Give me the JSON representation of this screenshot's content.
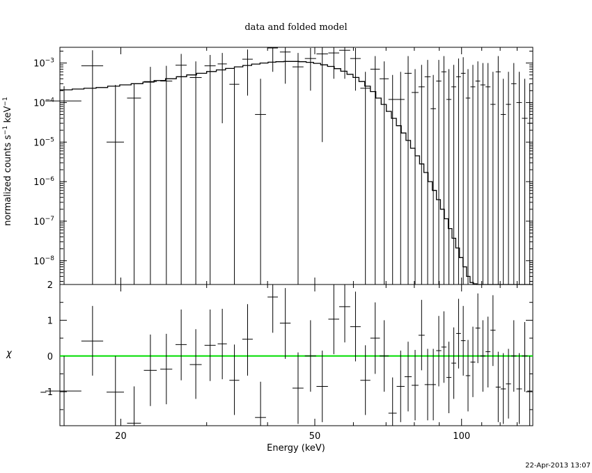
{
  "chart_data": {
    "type": "line",
    "title": "data and folded model",
    "xlabel": "Energy (keV)",
    "x_scale": "log",
    "xlim": [
      15,
      140
    ],
    "x_ticks": [
      20,
      50,
      100
    ],
    "timestamp": "22-Apr-2013 13:07",
    "upper_panel": {
      "ylabel": "normalized counts s^-1 keV^-1",
      "y_scale": "log",
      "ylim": [
        2.5e-09,
        0.0025
      ],
      "y_ticks": [
        1e-08,
        1e-07,
        1e-06,
        1e-05,
        0.0001,
        0.001
      ],
      "y_tick_labels": [
        {
          "base": "10",
          "exp": "−8"
        },
        {
          "base": "10",
          "exp": "−7"
        },
        {
          "base": "10",
          "exp": "−6"
        },
        {
          "base": "10",
          "exp": "−5"
        },
        {
          "base": "10",
          "exp": "−4"
        },
        {
          "base": "10",
          "exp": "−3"
        }
      ],
      "data_points": [
        {
          "x": 15.3,
          "xerr": 1.3,
          "y": 0.00011,
          "ylo": 2.5e-09,
          "yhi": 0.00026
        },
        {
          "x": 17.5,
          "xerr": 0.9,
          "y": 0.00085,
          "ylo": 2.5e-09,
          "yhi": 0.0021
        },
        {
          "x": 19.5,
          "xerr": 0.8,
          "y": 1e-05,
          "ylo": 2.5e-09,
          "yhi": 0.00028
        },
        {
          "x": 21.3,
          "xerr": 0.7,
          "y": 0.00013,
          "ylo": 2.5e-09,
          "yhi": 0.0003
        },
        {
          "x": 23.0,
          "xerr": 0.7,
          "y": 0.00034,
          "ylo": 2.5e-09,
          "yhi": 0.0008
        },
        {
          "x": 24.8,
          "xerr": 0.7,
          "y": 0.00035,
          "ylo": 2.5e-09,
          "yhi": 0.00085
        },
        {
          "x": 26.6,
          "xerr": 0.7,
          "y": 0.00088,
          "ylo": 2.5e-09,
          "yhi": 0.0017
        },
        {
          "x": 28.5,
          "xerr": 0.8,
          "y": 0.00043,
          "ylo": 2.5e-09,
          "yhi": 0.0011
        },
        {
          "x": 30.5,
          "xerr": 0.8,
          "y": 0.00085,
          "ylo": 2.5e-09,
          "yhi": 0.0016
        },
        {
          "x": 32.3,
          "xerr": 0.7,
          "y": 0.00095,
          "ylo": 3e-05,
          "yhi": 0.0018
        },
        {
          "x": 34.2,
          "xerr": 0.8,
          "y": 0.00029,
          "ylo": 2.5e-09,
          "yhi": 0.00075
        },
        {
          "x": 36.4,
          "xerr": 0.9,
          "y": 0.00125,
          "ylo": 0.00015,
          "yhi": 0.0022
        },
        {
          "x": 38.7,
          "xerr": 1.0,
          "y": 5e-05,
          "ylo": 2.5e-09,
          "yhi": 0.0004
        },
        {
          "x": 41.0,
          "xerr": 1.0,
          "y": 0.0024,
          "ylo": 0.0006,
          "yhi": 0.0025
        },
        {
          "x": 43.5,
          "xerr": 1.1,
          "y": 0.0019,
          "ylo": 0.0003,
          "yhi": 0.0025
        },
        {
          "x": 46.2,
          "xerr": 1.2,
          "y": 0.0008,
          "ylo": 2.5e-09,
          "yhi": 0.0018
        },
        {
          "x": 49.0,
          "xerr": 1.3,
          "y": 0.0013,
          "ylo": 0.0002,
          "yhi": 0.0024
        },
        {
          "x": 51.8,
          "xerr": 1.4,
          "y": 0.0017,
          "ylo": 1e-05,
          "yhi": 0.0025
        },
        {
          "x": 54.7,
          "xerr": 1.4,
          "y": 0.0018,
          "ylo": 0.0004,
          "yhi": 0.0025
        },
        {
          "x": 57.6,
          "xerr": 1.5,
          "y": 0.0021,
          "ylo": 0.0004,
          "yhi": 0.0025
        },
        {
          "x": 60.6,
          "xerr": 1.5,
          "y": 0.0013,
          "ylo": 0.0002,
          "yhi": 0.0024
        },
        {
          "x": 63.5,
          "xerr": 1.5,
          "y": 0.00023,
          "ylo": 2.5e-09,
          "yhi": 0.0006
        },
        {
          "x": 66.5,
          "xerr": 1.5,
          "y": 0.0007,
          "ylo": 2.5e-09,
          "yhi": 0.0015
        },
        {
          "x": 69.4,
          "xerr": 1.5,
          "y": 0.0004,
          "ylo": 2.5e-09,
          "yhi": 0.0011
        },
        {
          "x": 72.2,
          "xerr": 1.4,
          "y": 0.00012,
          "ylo": 2.5e-09,
          "yhi": 0.0005
        },
        {
          "x": 75.0,
          "xerr": 1.4,
          "y": 0.00012,
          "ylo": 2.5e-09,
          "yhi": 0.0006
        },
        {
          "x": 77.7,
          "xerr": 1.3,
          "y": 0.00055,
          "ylo": 2.5e-09,
          "yhi": 0.0015
        },
        {
          "x": 80.3,
          "xerr": 1.3,
          "y": 0.00018,
          "ylo": 2.5e-09,
          "yhi": 0.0007
        },
        {
          "x": 82.8,
          "xerr": 1.2,
          "y": 0.00025,
          "ylo": 2.5e-09,
          "yhi": 0.0009
        },
        {
          "x": 85.2,
          "xerr": 1.2,
          "y": 0.00045,
          "ylo": 2.5e-09,
          "yhi": 0.0012
        },
        {
          "x": 87.5,
          "xerr": 1.1,
          "y": 7e-05,
          "ylo": 2.5e-09,
          "yhi": 0.0005
        },
        {
          "x": 89.8,
          "xerr": 1.1,
          "y": 0.00035,
          "ylo": 2.5e-09,
          "yhi": 0.0012
        },
        {
          "x": 92.0,
          "xerr": 1.1,
          "y": 0.0006,
          "ylo": 2.5e-09,
          "yhi": 0.0015
        },
        {
          "x": 94.2,
          "xerr": 1.1,
          "y": 0.00012,
          "ylo": 2.5e-09,
          "yhi": 0.0007
        },
        {
          "x": 96.4,
          "xerr": 1.1,
          "y": 0.00025,
          "ylo": 2.5e-09,
          "yhi": 0.0009
        },
        {
          "x": 98.6,
          "xerr": 1.1,
          "y": 0.00045,
          "ylo": 2.5e-09,
          "yhi": 0.0013
        },
        {
          "x": 100.8,
          "xerr": 1.1,
          "y": 0.00055,
          "ylo": 2.5e-09,
          "yhi": 0.0014
        },
        {
          "x": 103.1,
          "xerr": 1.1,
          "y": 0.00013,
          "ylo": 2.5e-09,
          "yhi": 0.0007
        },
        {
          "x": 105.5,
          "xerr": 1.2,
          "y": 0.00025,
          "ylo": 2.5e-09,
          "yhi": 0.0009
        },
        {
          "x": 108.0,
          "xerr": 1.2,
          "y": 0.00035,
          "ylo": 2.5e-09,
          "yhi": 0.0011
        },
        {
          "x": 110.6,
          "xerr": 1.3,
          "y": 0.00028,
          "ylo": 2.5e-09,
          "yhi": 0.001
        },
        {
          "x": 113.3,
          "xerr": 1.3,
          "y": 0.00025,
          "ylo": 2.5e-09,
          "yhi": 0.001
        },
        {
          "x": 116.0,
          "xerr": 1.4,
          "y": 9e-05,
          "ylo": 2.5e-09,
          "yhi": 0.0006
        },
        {
          "x": 118.9,
          "xerr": 1.4,
          "y": 0.0006,
          "ylo": 2.5e-09,
          "yhi": 0.0015
        },
        {
          "x": 121.8,
          "xerr": 1.5,
          "y": 5e-05,
          "ylo": 2.5e-09,
          "yhi": 0.0004
        },
        {
          "x": 124.8,
          "xerr": 1.5,
          "y": 9e-05,
          "ylo": 2.5e-09,
          "yhi": 0.0006
        },
        {
          "x": 128.0,
          "xerr": 1.6,
          "y": 0.0003,
          "ylo": 2.5e-09,
          "yhi": 0.001
        },
        {
          "x": 131.3,
          "xerr": 1.7,
          "y": 0.0001,
          "ylo": 2.5e-09,
          "yhi": 0.0006
        },
        {
          "x": 134.8,
          "xerr": 1.8,
          "y": 4e-05,
          "ylo": 2.5e-09,
          "yhi": 0.0004
        },
        {
          "x": 138.0,
          "xerr": 1.6,
          "y": 3e-05,
          "ylo": 2.5e-09,
          "yhi": 0.0003
        }
      ],
      "model": {
        "edges": [
          15,
          15.9,
          16.8,
          17.8,
          18.8,
          19.9,
          21,
          22.2,
          23.4,
          24.7,
          26,
          27.3,
          28.6,
          30,
          31.4,
          32.8,
          34.2,
          35.6,
          37.1,
          38.6,
          40.1,
          41.6,
          43.2,
          44.8,
          46.4,
          48,
          49.7,
          51.4,
          53.1,
          54.8,
          56.5,
          58.2,
          59.9,
          61.6,
          63.3,
          65,
          66.7,
          68.4,
          70.1,
          71.8,
          73.5,
          75.2,
          76.9,
          78.6,
          80.3,
          82,
          83.7,
          85.4,
          87.1,
          88.8,
          90.5,
          92.2,
          93.9,
          95.6,
          97.3,
          99,
          100.7,
          102.4,
          104.1,
          105.8,
          107.5,
          109.2,
          110.9,
          112.6,
          114.3,
          116,
          117.7,
          119.4,
          121.1,
          122.8,
          124.5,
          126.2,
          127.9,
          129.6,
          131.3,
          133,
          134.7,
          136.4,
          138.1,
          140
        ],
        "values": [
          0.00021,
          0.00022,
          0.00023,
          0.00024,
          0.00026,
          0.00028,
          0.0003,
          0.00033,
          0.00036,
          0.0004,
          0.00045,
          0.0005,
          0.00055,
          0.00061,
          0.00067,
          0.00073,
          0.0008,
          0.00087,
          0.00094,
          0.001,
          0.00105,
          0.00108,
          0.0011,
          0.0011,
          0.00108,
          0.00104,
          0.00098,
          0.0009,
          0.00082,
          0.00072,
          0.00062,
          0.00052,
          0.00043,
          0.00034,
          0.00026,
          0.00019,
          0.00013,
          9e-05,
          6e-05,
          4e-05,
          2.6e-05,
          1.7e-05,
          1.1e-05,
          7e-06,
          4.5e-06,
          2.8e-06,
          1.7e-06,
          1e-06,
          6e-07,
          3.5e-07,
          2e-07,
          1.15e-07,
          6.5e-08,
          3.7e-08,
          2.1e-08,
          1.2e-08,
          7e-09,
          4e-09,
          2.8e-09,
          2.6e-09,
          2.5e-09,
          2.5e-09,
          2.5e-09,
          2.5e-09,
          2.5e-09,
          2.5e-09,
          2.5e-09,
          2.5e-09,
          2.5e-09,
          2.5e-09,
          2.5e-09,
          2.5e-09,
          2.5e-09,
          2.5e-09,
          2.5e-09,
          2.5e-09,
          2.5e-09,
          2.5e-09,
          2.5e-09
        ]
      }
    },
    "lower_panel": {
      "ylabel": "χ",
      "ylim": [
        -1.95,
        2
      ],
      "y_ticks": [
        -1,
        0,
        1,
        2
      ],
      "y_tick_labels": [
        "−1",
        "0",
        "1",
        "2"
      ],
      "zero_line_color": "#00dd00",
      "residuals": [
        {
          "x": 15.3,
          "xerr": 1.3,
          "y": -0.98,
          "lo": -1.95,
          "hi": 0.0
        },
        {
          "x": 17.5,
          "xerr": 0.9,
          "y": 0.42,
          "lo": -0.55,
          "hi": 1.4
        },
        {
          "x": 19.5,
          "xerr": 0.8,
          "y": -1.01,
          "lo": -1.95,
          "hi": 0.0
        },
        {
          "x": 21.3,
          "xerr": 0.7,
          "y": -1.88,
          "lo": -1.95,
          "hi": -0.85
        },
        {
          "x": 23.0,
          "xerr": 0.7,
          "y": -0.4,
          "lo": -1.4,
          "hi": 0.6
        },
        {
          "x": 24.8,
          "xerr": 0.7,
          "y": -0.37,
          "lo": -1.35,
          "hi": 0.62
        },
        {
          "x": 26.6,
          "xerr": 0.7,
          "y": 0.32,
          "lo": -0.68,
          "hi": 1.3
        },
        {
          "x": 28.5,
          "xerr": 0.8,
          "y": -0.24,
          "lo": -1.2,
          "hi": 0.75
        },
        {
          "x": 30.5,
          "xerr": 0.8,
          "y": 0.3,
          "lo": -0.7,
          "hi": 1.3
        },
        {
          "x": 32.3,
          "xerr": 0.7,
          "y": 0.34,
          "lo": -0.65,
          "hi": 1.32
        },
        {
          "x": 34.2,
          "xerr": 0.8,
          "y": -0.68,
          "lo": -1.65,
          "hi": 0.32
        },
        {
          "x": 36.4,
          "xerr": 0.9,
          "y": 0.47,
          "lo": -0.55,
          "hi": 1.45
        },
        {
          "x": 38.7,
          "xerr": 1.0,
          "y": -1.72,
          "lo": -1.95,
          "hi": -0.72
        },
        {
          "x": 41.0,
          "xerr": 1.0,
          "y": 1.65,
          "lo": 0.65,
          "hi": 2.0
        },
        {
          "x": 43.5,
          "xerr": 1.1,
          "y": 0.92,
          "lo": -0.08,
          "hi": 1.9
        },
        {
          "x": 46.2,
          "xerr": 1.2,
          "y": -0.9,
          "lo": -1.9,
          "hi": 0.1
        },
        {
          "x": 49.0,
          "xerr": 1.3,
          "y": 0.0,
          "lo": -1.0,
          "hi": 1.0
        },
        {
          "x": 51.8,
          "xerr": 1.4,
          "y": -0.85,
          "lo": -1.85,
          "hi": 0.15
        },
        {
          "x": 54.7,
          "xerr": 1.4,
          "y": 1.03,
          "lo": 0.05,
          "hi": 2.0
        },
        {
          "x": 57.6,
          "xerr": 1.5,
          "y": 1.38,
          "lo": 0.38,
          "hi": 2.0
        },
        {
          "x": 60.6,
          "xerr": 1.5,
          "y": 0.82,
          "lo": -0.15,
          "hi": 1.8
        },
        {
          "x": 63.5,
          "xerr": 1.5,
          "y": -0.68,
          "lo": -1.65,
          "hi": 0.3
        },
        {
          "x": 66.5,
          "xerr": 1.5,
          "y": 0.5,
          "lo": -0.5,
          "hi": 1.5
        },
        {
          "x": 69.4,
          "xerr": 1.5,
          "y": 0.0,
          "lo": -1.0,
          "hi": 1.0
        },
        {
          "x": 72.2,
          "xerr": 1.4,
          "y": -1.6,
          "lo": -1.95,
          "hi": -0.6
        },
        {
          "x": 75.0,
          "xerr": 1.4,
          "y": -0.85,
          "lo": -1.85,
          "hi": 0.15
        },
        {
          "x": 77.7,
          "xerr": 1.3,
          "y": -0.58,
          "lo": -1.55,
          "hi": 0.4
        },
        {
          "x": 80.3,
          "xerr": 1.3,
          "y": -0.82,
          "lo": -1.8,
          "hi": 0.17
        },
        {
          "x": 82.8,
          "xerr": 1.2,
          "y": 0.58,
          "lo": -0.4,
          "hi": 1.57
        },
        {
          "x": 85.2,
          "xerr": 1.2,
          "y": -0.8,
          "lo": -1.8,
          "hi": 0.2
        },
        {
          "x": 87.5,
          "xerr": 1.1,
          "y": -0.8,
          "lo": -1.8,
          "hi": 0.2
        },
        {
          "x": 89.8,
          "xerr": 1.1,
          "y": 0.15,
          "lo": -0.85,
          "hi": 1.12
        },
        {
          "x": 92.0,
          "xerr": 1.1,
          "y": 0.25,
          "lo": -0.75,
          "hi": 1.25
        },
        {
          "x": 94.2,
          "xerr": 1.1,
          "y": -0.6,
          "lo": -1.6,
          "hi": 0.4
        },
        {
          "x": 96.4,
          "xerr": 1.1,
          "y": -0.2,
          "lo": -1.2,
          "hi": 0.8
        },
        {
          "x": 98.6,
          "xerr": 1.1,
          "y": 0.63,
          "lo": -0.35,
          "hi": 1.6
        },
        {
          "x": 100.8,
          "xerr": 1.1,
          "y": 0.43,
          "lo": -0.55,
          "hi": 1.4
        },
        {
          "x": 103.1,
          "xerr": 1.1,
          "y": -0.55,
          "lo": -1.55,
          "hi": 0.45
        },
        {
          "x": 105.5,
          "xerr": 1.2,
          "y": -0.17,
          "lo": -1.15,
          "hi": 0.82
        },
        {
          "x": 108.0,
          "xerr": 1.2,
          "y": 0.78,
          "lo": -0.2,
          "hi": 1.75
        },
        {
          "x": 110.6,
          "xerr": 1.3,
          "y": 0.0,
          "lo": -1.0,
          "hi": 1.0
        },
        {
          "x": 113.3,
          "xerr": 1.3,
          "y": 0.12,
          "lo": -0.88,
          "hi": 1.1
        },
        {
          "x": 116.0,
          "xerr": 1.4,
          "y": 0.72,
          "lo": -0.28,
          "hi": 1.7
        },
        {
          "x": 118.9,
          "xerr": 1.4,
          "y": -0.87,
          "lo": -1.85,
          "hi": 0.12
        },
        {
          "x": 121.8,
          "xerr": 1.5,
          "y": -0.92,
          "lo": -1.9,
          "hi": 0.08
        },
        {
          "x": 124.8,
          "xerr": 1.5,
          "y": -0.78,
          "lo": -1.75,
          "hi": 0.2
        },
        {
          "x": 128.0,
          "xerr": 1.6,
          "y": 0.0,
          "lo": -1.0,
          "hi": 1.0
        },
        {
          "x": 131.3,
          "xerr": 1.7,
          "y": -0.92,
          "lo": -1.9,
          "hi": 0.08
        },
        {
          "x": 134.8,
          "xerr": 1.8,
          "y": 0.0,
          "lo": -1.0,
          "hi": 0.95
        },
        {
          "x": 138.0,
          "xerr": 1.6,
          "y": -0.98,
          "lo": -1.95,
          "hi": 0.0
        }
      ]
    }
  }
}
